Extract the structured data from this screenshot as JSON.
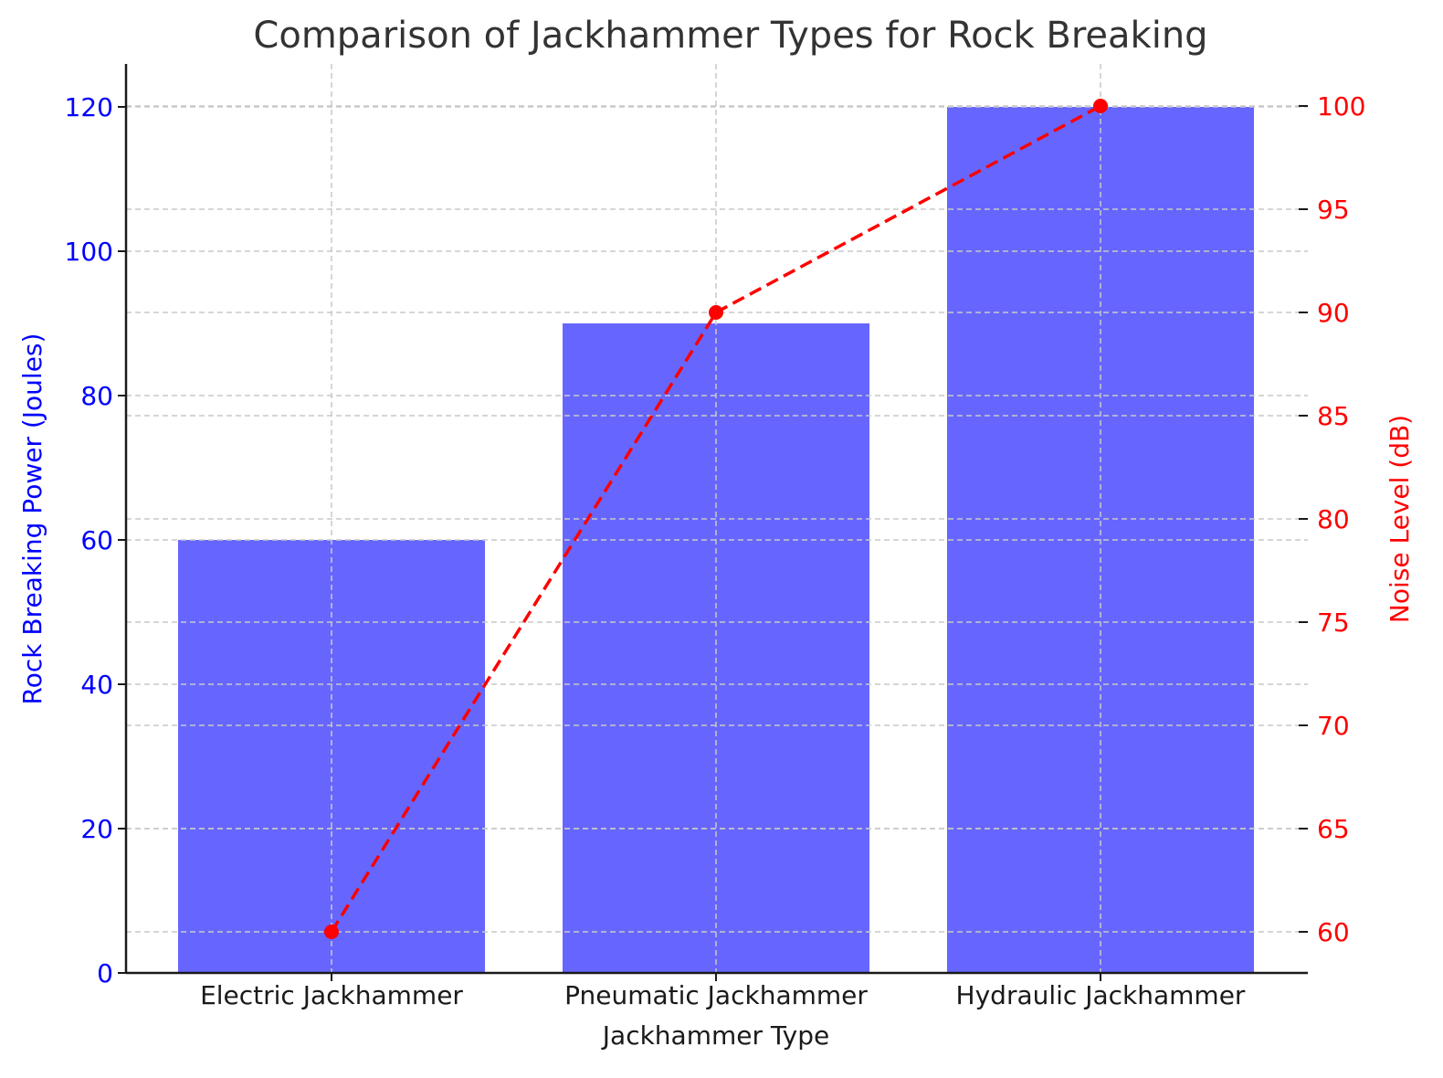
{
  "chart_data": {
    "type": "bar+line",
    "title": "Comparison of Jackhammer Types for Rock Breaking",
    "xlabel": "Jackhammer Type",
    "categories": [
      "Electric Jackhammer",
      "Pneumatic Jackhammer",
      "Hydraulic Jackhammer"
    ],
    "series": [
      {
        "name": "Rock Breaking Power (Joules)",
        "type": "bar",
        "axis": "left",
        "color": "#6666ff",
        "values": [
          60,
          90,
          120
        ]
      },
      {
        "name": "Noise Level (dB)",
        "type": "line",
        "axis": "right",
        "color": "#ff0000",
        "linestyle": "dashed",
        "marker": "o",
        "values": [
          60,
          90,
          100
        ]
      }
    ],
    "left_axis": {
      "label": "Rock Breaking Power (Joules)",
      "color": "#0000ff",
      "ticks": [
        0,
        20,
        40,
        60,
        80,
        100,
        120
      ],
      "ylim": [
        0,
        126
      ]
    },
    "right_axis": {
      "label": "Noise Level (dB)",
      "color": "#ff0000",
      "ticks": [
        60,
        65,
        70,
        75,
        80,
        85,
        90,
        95,
        100
      ],
      "ylim": [
        58,
        102
      ]
    },
    "grid": true
  }
}
